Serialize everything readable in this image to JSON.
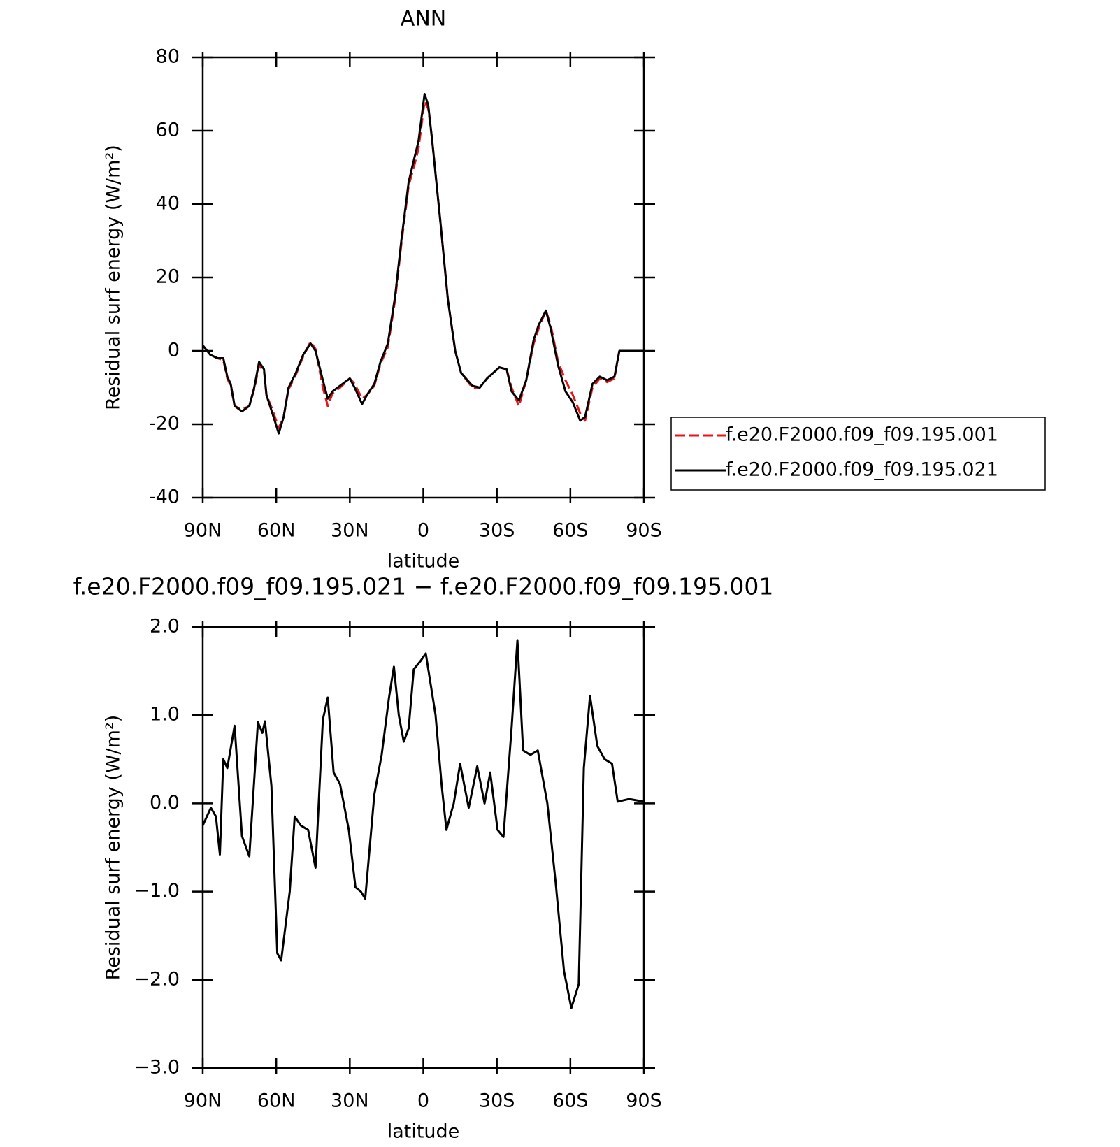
{
  "chart_data": [
    {
      "type": "line",
      "title": "ANN",
      "xlabel": "latitude",
      "ylabel": "Residual surf energy (W/m²)",
      "x": [
        90,
        87,
        84,
        81.6,
        80,
        78.6,
        77,
        74,
        71,
        69,
        67,
        65,
        64,
        61.6,
        59,
        57,
        55,
        52,
        49,
        46,
        44,
        41,
        39,
        37,
        34,
        30,
        28,
        25,
        23,
        20,
        17.5,
        14.5,
        11.5,
        9,
        6,
        3.5,
        2,
        -0.5,
        -2,
        -3.5,
        -7,
        -10,
        -13,
        -15.4,
        -20,
        -23,
        -26,
        -31,
        -34,
        -36,
        -39,
        -42,
        -45,
        -47,
        -50,
        -52,
        -55,
        -58,
        -61,
        -64,
        -66,
        -69,
        -72,
        -75,
        -78,
        -80,
        -85,
        -90
      ],
      "series": [
        {
          "name": "f.e20.F2000.f09_f09.195.001",
          "color": "#e8141a",
          "dash": true,
          "values": [
            1.5,
            -1,
            -2,
            -2.5,
            -7.5,
            -9.5,
            -15,
            -16,
            -15,
            -10.5,
            -4,
            -5.5,
            -12,
            -16,
            -21,
            -18,
            -10.5,
            -6.5,
            -1.5,
            2.5,
            0.5,
            -10,
            -15,
            -11.5,
            -10,
            -7.5,
            -9,
            -13,
            -12,
            -9.5,
            -3.5,
            1,
            14,
            29,
            45,
            51,
            55,
            68,
            66,
            58,
            35,
            14,
            0,
            -6,
            -10,
            -10,
            -7.5,
            -4.5,
            -5,
            -10,
            -15,
            -8,
            2,
            6,
            11,
            7,
            -3,
            -8,
            -12,
            -17,
            -19,
            -10,
            -7.5,
            -8.5,
            -7.5,
            0,
            0,
            0
          ]
        },
        {
          "name": "f.e20.F2000.f09_f09.195.021",
          "color": "#000000",
          "dash": false,
          "values": [
            1.5,
            -1,
            -2,
            -2,
            -7,
            -9,
            -15,
            -16.5,
            -15,
            -10,
            -3,
            -5,
            -12,
            -17,
            -22.5,
            -18,
            -10,
            -6,
            -1,
            2,
            0,
            -8,
            -13,
            -11,
            -9.5,
            -7.5,
            -10,
            -14.5,
            -12,
            -9,
            -3,
            2,
            15,
            30,
            46,
            53,
            57,
            70,
            67,
            58,
            35,
            14,
            0,
            -6,
            -9.5,
            -10,
            -7.5,
            -4.5,
            -5,
            -11,
            -13.5,
            -8,
            3,
            7,
            11,
            6,
            -4,
            -11,
            -14,
            -19,
            -18,
            -9,
            -7,
            -8,
            -7,
            0,
            0,
            0
          ]
        }
      ],
      "xlim": [
        90,
        -90
      ],
      "xticks": [
        {
          "value": 90,
          "label": "90N"
        },
        {
          "value": 60,
          "label": "60N"
        },
        {
          "value": 30,
          "label": "30N"
        },
        0,
        {
          "value": -30,
          "label": "30S"
        },
        {
          "value": -60,
          "label": "60S"
        },
        {
          "value": -90,
          "label": "90S"
        }
      ],
      "ylim": [
        -40,
        80
      ],
      "yticks": [
        -40,
        -20,
        0,
        20,
        40,
        60,
        80
      ],
      "legend": "right"
    },
    {
      "type": "line",
      "title": "f.e20.F2000.f09_f09.195.021 − f.e20.F2000.f09_f09.195.001",
      "xlabel": "latitude",
      "ylabel": "Residual surf energy (W/m²)",
      "x": [
        90,
        86.7,
        84.6,
        83,
        81.6,
        80,
        77,
        74,
        71,
        67.5,
        65.7,
        64.6,
        62,
        59.6,
        58,
        54.5,
        52.5,
        50,
        47,
        44,
        41,
        39,
        36.6,
        34,
        30.4,
        27.7,
        25.5,
        23.7,
        20,
        17,
        14,
        12,
        10,
        8,
        6,
        3.9,
        1,
        -1,
        -5,
        -7.5,
        -9.4,
        -12.4,
        -15,
        -18.5,
        -22,
        -25,
        -27.3,
        -30.3,
        -32.7,
        -36,
        -38.4,
        -40.7,
        -43.7,
        -46.7,
        -50.6,
        -54,
        -57.4,
        -60.4,
        -63.4,
        -65.5,
        -68,
        -71,
        -74,
        -77,
        -79.3,
        -84,
        -90
      ],
      "series": [
        {
          "color": "#000000",
          "dash": false,
          "values": [
            -0.25,
            -0.05,
            -0.15,
            -0.58,
            0.5,
            0.4,
            0.88,
            -0.37,
            -0.6,
            0.92,
            0.8,
            0.93,
            0.2,
            -1.7,
            -1.78,
            -1.0,
            -0.15,
            -0.25,
            -0.3,
            -0.73,
            0.95,
            1.2,
            0.35,
            0.22,
            -0.3,
            -0.95,
            -1.0,
            -1.08,
            0.1,
            0.55,
            1.2,
            1.55,
            1.0,
            0.7,
            0.85,
            1.52,
            1.62,
            1.7,
            1.0,
            0.2,
            -0.3,
            0.0,
            0.45,
            -0.05,
            0.42,
            0.0,
            0.35,
            -0.3,
            -0.38,
            0.85,
            1.85,
            0.6,
            0.55,
            0.6,
            0.0,
            -0.9,
            -1.9,
            -2.32,
            -2.05,
            0.4,
            1.22,
            0.65,
            0.5,
            0.45,
            0.02,
            0.05,
            0.02
          ]
        }
      ],
      "xlim": [
        90,
        -90
      ],
      "xticks": [
        {
          "value": 90,
          "label": "90N"
        },
        {
          "value": 60,
          "label": "60N"
        },
        {
          "value": 30,
          "label": "30N"
        },
        0,
        {
          "value": -30,
          "label": "30S"
        },
        {
          "value": -60,
          "label": "60S"
        },
        {
          "value": -90,
          "label": "90S"
        }
      ],
      "ylim": [
        -3,
        2
      ],
      "yticks": [
        {
          "value": -3,
          "label": "−3.0"
        },
        {
          "value": -2,
          "label": "−2.0"
        },
        {
          "value": -1,
          "label": "−1.0"
        },
        {
          "value": 0,
          "label": "0.0"
        },
        {
          "value": 1,
          "label": "1.0"
        },
        {
          "value": 2,
          "label": "2.0"
        }
      ]
    }
  ]
}
